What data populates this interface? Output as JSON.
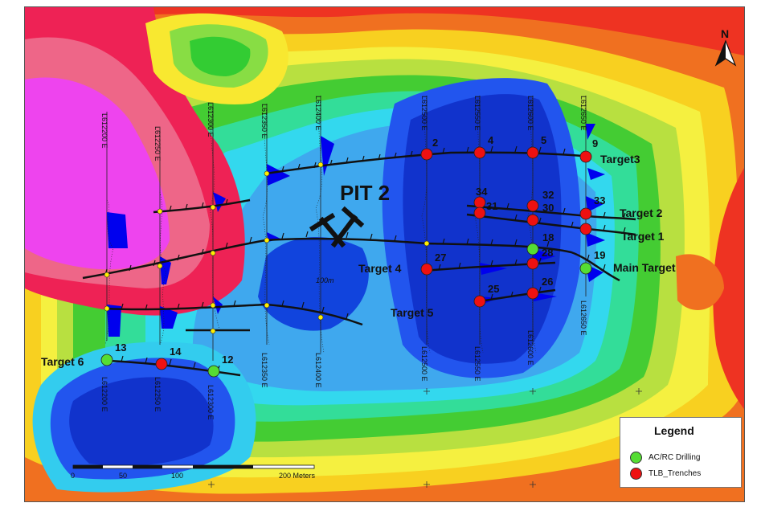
{
  "north_label": "N",
  "pit_label": "PIT 2",
  "scale_note": "100m",
  "colors": {
    "drilling": "#55dd33",
    "trench": "#ee1111",
    "line_marker": "#ffee00",
    "anomaly": "#0000ee"
  },
  "lines_top": [
    "L612200 E",
    "L612250 E",
    "L612300 E",
    "L612350 E",
    "L612400 E",
    "L612500 E",
    "L612550 E",
    "L612600 E",
    "L612650 E"
  ],
  "lines_bottom": [
    "L612200 E",
    "L612250 E",
    "L612300 E",
    "L612350 E",
    "L612400 E",
    "L612500 E",
    "L612550 E",
    "L612600 E",
    "L612650 E"
  ],
  "targets": [
    "Target3",
    "Target 2",
    "Target 1",
    "Main Target",
    "Target 4",
    "Target 5",
    "Target 6"
  ],
  "points": {
    "p2": "2",
    "p4": "4",
    "p5": "5",
    "p9": "9",
    "p34": "34",
    "p32": "32",
    "p33": "33",
    "p31": "31",
    "p30": "30",
    "p18": "18",
    "p19": "19",
    "p28": "28",
    "p27": "27",
    "p25": "25",
    "p26": "26",
    "p13": "13",
    "p14": "14",
    "p12": "12"
  },
  "scale_ticks": [
    "0",
    "50",
    "100",
    "200 Meters"
  ],
  "legend": {
    "title": "Legend",
    "drilling": "AC/RC Drilling",
    "trenches": "TLB_Trenches"
  }
}
